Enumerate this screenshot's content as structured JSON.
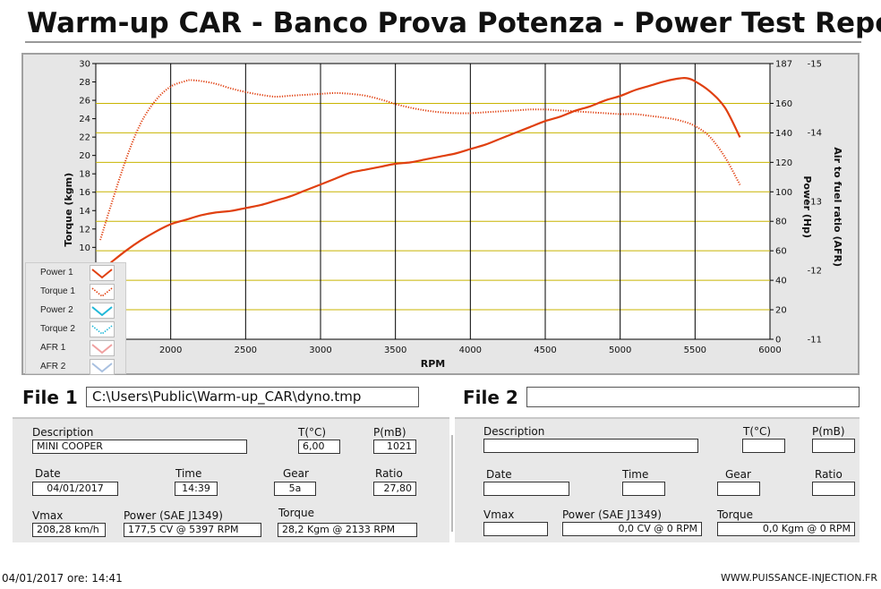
{
  "header": {
    "title": "Warm-up CAR  - Banco Prova Potenza -  Power Test Report"
  },
  "legend": [
    {
      "label": "Power 1",
      "color": "#e04010",
      "style": "solid"
    },
    {
      "label": "Torque 1",
      "color": "#e04010",
      "style": "dotted"
    },
    {
      "label": "Power 2",
      "color": "#20b8d8",
      "style": "solid"
    },
    {
      "label": "Torque 2",
      "color": "#20b8d8",
      "style": "dotted"
    },
    {
      "label": "AFR 1",
      "color": "#f0a0a0",
      "style": "solid"
    },
    {
      "label": "AFR 2",
      "color": "#a8c0e0",
      "style": "solid"
    }
  ],
  "chart_data": {
    "type": "line",
    "xlabel": "RPM",
    "ylabel_left": "Torque (kgm)",
    "ylabel_right": "Power (Hp)",
    "ylabel_right2": "Air to fuel ratio (AFR)",
    "x_ticks": [
      "2000",
      "2500",
      "3000",
      "3500",
      "4000",
      "4500",
      "5000",
      "5500",
      "6000"
    ],
    "y_left_ticks": [
      "10",
      "12",
      "14",
      "16",
      "18",
      "20",
      "22",
      "24",
      "26",
      "28",
      "30"
    ],
    "y_right_ticks": [
      "0",
      "20",
      "40",
      "60",
      "80",
      "100",
      "120",
      "140",
      "160",
      "187"
    ],
    "y_afr_ticks": [
      "-11",
      "-12",
      "-13",
      "-14",
      "-15"
    ],
    "xlim": [
      1500,
      6000
    ],
    "ylim_left": [
      0,
      30
    ],
    "ylim_right": [
      0,
      187
    ],
    "grid": true,
    "series": [
      {
        "name": "Power 1",
        "axis": "right",
        "style": "solid",
        "color": "#e04010",
        "x": [
          1600,
          1700,
          1800,
          1900,
          2000,
          2100,
          2200,
          2300,
          2400,
          2500,
          2600,
          2700,
          2800,
          2900,
          3000,
          3100,
          3200,
          3300,
          3400,
          3500,
          3600,
          3700,
          3800,
          3900,
          4000,
          4100,
          4200,
          4300,
          4400,
          4500,
          4600,
          4700,
          4800,
          4900,
          5000,
          5100,
          5200,
          5300,
          5400,
          5450,
          5500,
          5600,
          5700,
          5800
        ],
        "y": [
          52,
          60,
          67,
          73,
          78,
          81,
          84,
          86,
          87,
          89,
          91,
          94,
          97,
          101,
          105,
          109,
          113,
          115,
          117,
          119,
          120,
          122,
          124,
          126,
          129,
          132,
          136,
          140,
          144,
          148,
          151,
          155,
          158,
          162,
          165,
          169,
          172,
          175,
          177,
          177,
          175,
          168,
          157,
          137
        ]
      },
      {
        "name": "Torque 1",
        "axis": "left",
        "style": "dotted",
        "color": "#e04010",
        "x": [
          1530,
          1600,
          1700,
          1800,
          1900,
          2000,
          2100,
          2133,
          2200,
          2300,
          2400,
          2500,
          2600,
          2700,
          2800,
          2900,
          3000,
          3100,
          3200,
          3300,
          3400,
          3500,
          3600,
          3700,
          3800,
          3900,
          4000,
          4100,
          4200,
          4300,
          4400,
          4500,
          4600,
          4700,
          4800,
          4900,
          5000,
          5100,
          5200,
          5300,
          5400,
          5500,
          5600,
          5700,
          5800
        ],
        "y": [
          10.8,
          14.5,
          19.5,
          23.5,
          26,
          27.5,
          28.1,
          28.2,
          28.1,
          27.8,
          27.3,
          26.9,
          26.6,
          26.4,
          26.5,
          26.6,
          26.7,
          26.8,
          26.7,
          26.5,
          26.1,
          25.6,
          25.2,
          24.9,
          24.7,
          24.6,
          24.6,
          24.7,
          24.8,
          24.9,
          25.0,
          25.0,
          24.9,
          24.8,
          24.7,
          24.6,
          24.5,
          24.5,
          24.3,
          24.1,
          23.8,
          23.2,
          22.0,
          19.8,
          16.8
        ]
      }
    ]
  },
  "file1": {
    "label": "File 1",
    "path": "C:\\Users\\Public\\Warm-up_CAR\\dyno.tmp",
    "description_label": "Description",
    "description": "MINI COOPER",
    "temp_label": "T(°C)",
    "temp": "6,00",
    "pressure_label": "P(mB)",
    "pressure": "1021",
    "date_label": "Date",
    "date": "04/01/2017",
    "time_label": "Time",
    "time": "14:39",
    "gear_label": "Gear",
    "gear": "5a",
    "ratio_label": "Ratio",
    "ratio": "27,80",
    "vmax_label": "Vmax",
    "vmax": "208,28 km/h",
    "power_label": "Power (SAE J1349)",
    "power": "177,5 CV  @ 5397  RPM",
    "torque_label": "Torque",
    "torque": "28,2 Kgm  @ 2133  RPM"
  },
  "file2": {
    "label": "File 2",
    "path": "",
    "description_label": "Description",
    "description": "",
    "temp_label": "T(°C)",
    "temp": "",
    "pressure_label": "P(mB)",
    "pressure": "",
    "date_label": "Date",
    "date": "",
    "time_label": "Time",
    "time": "",
    "gear_label": "Gear",
    "gear": "",
    "ratio_label": "Ratio",
    "ratio": "",
    "vmax_label": "Vmax",
    "vmax": "",
    "power_label": "Power (SAE J1349)",
    "power": "0,0 CV  @ 0  RPM",
    "torque_label": "Torque",
    "torque": "0,0 Kgm  @ 0  RPM"
  },
  "footer": {
    "timestamp": "04/01/2017  ore: 14:41",
    "website": "WWW.PUISSANCE-INJECTION.FR"
  }
}
